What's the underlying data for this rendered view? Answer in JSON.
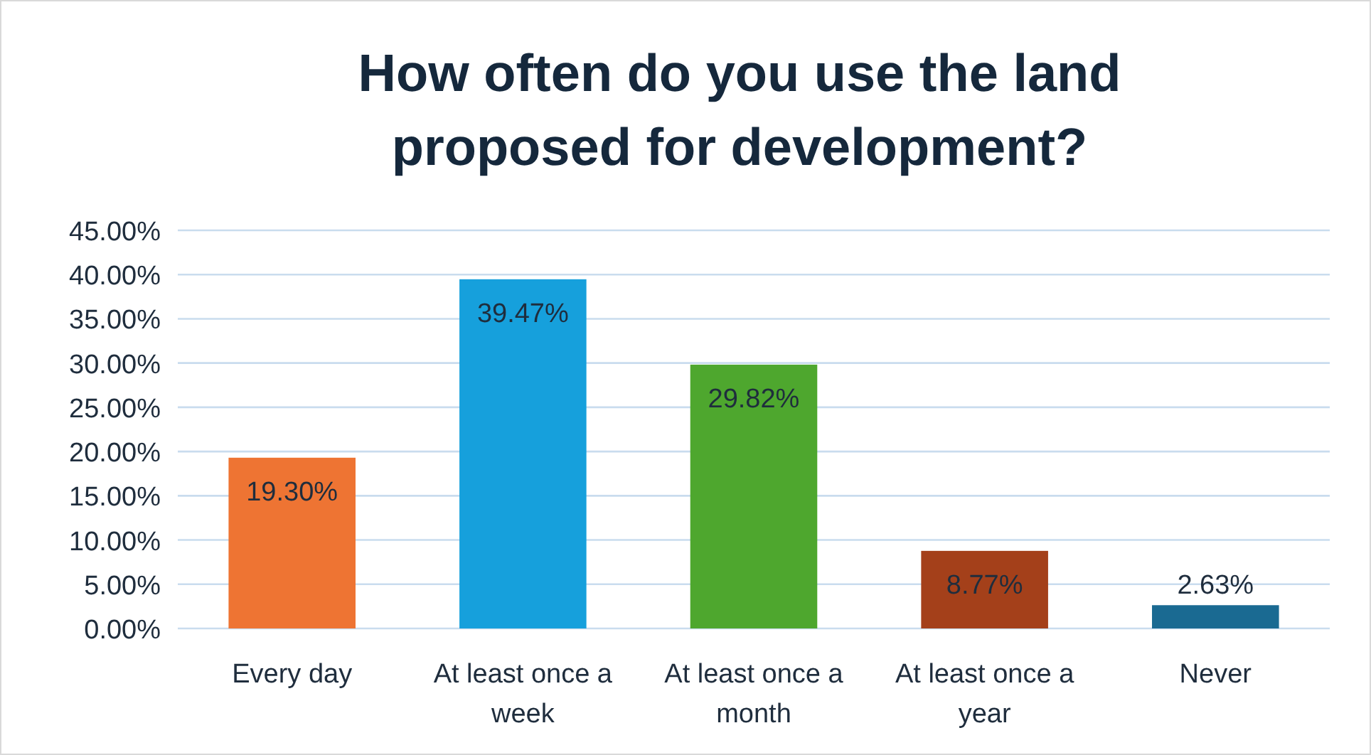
{
  "chart_data": {
    "type": "bar",
    "title": "How often do you use the land proposed for development?",
    "categories": [
      "Every day",
      "At least once a week",
      "At least once a month",
      "At least once a year",
      "Never"
    ],
    "values": [
      19.3,
      39.47,
      29.82,
      8.77,
      2.63
    ],
    "colors": [
      "#ee7433",
      "#16a0dc",
      "#4ea72e",
      "#a4401a",
      "#1a6a92"
    ],
    "value_labels": [
      "19.30%",
      "39.47%",
      "29.82%",
      "8.77%",
      "2.63%"
    ],
    "ylim": [
      0,
      45
    ],
    "yticks": [
      {
        "value": 0,
        "label": "0.00%"
      },
      {
        "value": 5,
        "label": "5.00%"
      },
      {
        "value": 10,
        "label": "10.00%"
      },
      {
        "value": 15,
        "label": "15.00%"
      },
      {
        "value": 20,
        "label": "20.00%"
      },
      {
        "value": 25,
        "label": "25.00%"
      },
      {
        "value": 30,
        "label": "30.00%"
      },
      {
        "value": 35,
        "label": "35.00%"
      },
      {
        "value": 40,
        "label": "40.00%"
      },
      {
        "value": 45,
        "label": "45.00%"
      }
    ],
    "grid": "y"
  }
}
